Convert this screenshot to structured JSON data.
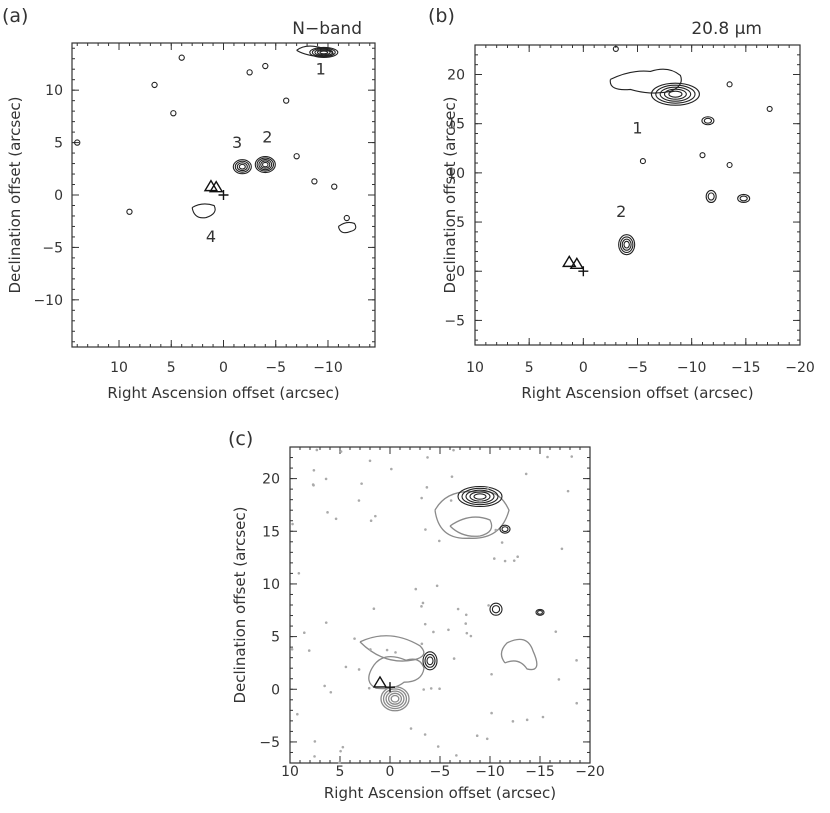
{
  "chart_data": [
    {
      "type": "contour",
      "panel_label": "(a)",
      "title": "N−band",
      "xlabel": "Right Ascension offset (arcsec)",
      "ylabel": "Declination offset (arcsec)",
      "xlim": [
        14.5,
        -14.5
      ],
      "ylim": [
        -14.5,
        14.5
      ],
      "xticks": [
        10,
        5,
        0,
        -5,
        -10
      ],
      "xtick_labels": [
        "10",
        "5",
        "0",
        "−5",
        "−10"
      ],
      "yticks": [
        10,
        5,
        0,
        -5,
        -10
      ],
      "ytick_labels": [
        "10",
        "5",
        "0",
        "−5",
        "−10"
      ],
      "sources": [
        {
          "label": "1",
          "x": -9.5,
          "y": 13.5,
          "label_x": -9.3,
          "label_y": 11.5
        },
        {
          "label": "2",
          "x": -4.0,
          "y": 2.8,
          "label_x": -4.2,
          "label_y": 5.0
        },
        {
          "label": "3",
          "x": -1.7,
          "y": 2.8,
          "label_x": -1.3,
          "label_y": 4.5
        },
        {
          "label": "4",
          "x": 1.5,
          "y": -2.0,
          "label_x": 1.2,
          "label_y": -4.5
        }
      ],
      "markers": [
        {
          "shape": "triangle",
          "x": 1.2,
          "y": 0.8
        },
        {
          "shape": "triangle",
          "x": 0.7,
          "y": 0.7
        },
        {
          "shape": "plus",
          "x": 0.0,
          "y": 0.0
        }
      ]
    },
    {
      "type": "contour",
      "panel_label": "(b)",
      "title": "20.8 μm",
      "xlabel": "Right Ascension offset (arcsec)",
      "ylabel": "Declination offset (arcsec)",
      "xlim": [
        10,
        -20
      ],
      "ylim": [
        -7.5,
        23
      ],
      "xticks": [
        10,
        5,
        0,
        -5,
        -10,
        -15,
        -20
      ],
      "xtick_labels": [
        "10",
        "5",
        "0",
        "−5",
        "−10",
        "−15",
        "−20"
      ],
      "yticks": [
        20,
        15,
        10,
        5,
        0,
        -5
      ],
      "ytick_labels": [
        "20",
        "15",
        "10",
        "5",
        "0",
        "−5"
      ],
      "sources": [
        {
          "label": "1",
          "x": -8.5,
          "y": 18.0,
          "label_x": -5.0,
          "label_y": 14.0
        },
        {
          "label": "2",
          "x": -4.0,
          "y": 2.8,
          "label_x": -3.5,
          "label_y": 5.5
        }
      ],
      "markers": [
        {
          "shape": "triangle",
          "x": 1.3,
          "y": 0.9
        },
        {
          "shape": "triangle",
          "x": 0.6,
          "y": 0.7
        },
        {
          "shape": "plus",
          "x": 0.0,
          "y": 0.0
        }
      ]
    },
    {
      "type": "contour-overlay",
      "panel_label": "(c)",
      "xlabel": "Right Ascension offset (arcsec)",
      "ylabel": "Declination offset (arcsec)",
      "xlim": [
        10,
        -20
      ],
      "ylim": [
        -7,
        23
      ],
      "xticks": [
        10,
        5,
        0,
        -5,
        -10,
        -15,
        -20
      ],
      "xtick_labels": [
        "10",
        "5",
        "0",
        "−5",
        "−10",
        "−15",
        "−20"
      ],
      "yticks": [
        20,
        15,
        10,
        5,
        0,
        -5
      ],
      "ytick_labels": [
        "20",
        "15",
        "10",
        "5",
        "0",
        "−5"
      ],
      "markers": [
        {
          "shape": "triangle",
          "x": 1.0,
          "y": 0.6
        },
        {
          "shape": "plus",
          "x": 0.0,
          "y": 0.2
        }
      ]
    }
  ]
}
